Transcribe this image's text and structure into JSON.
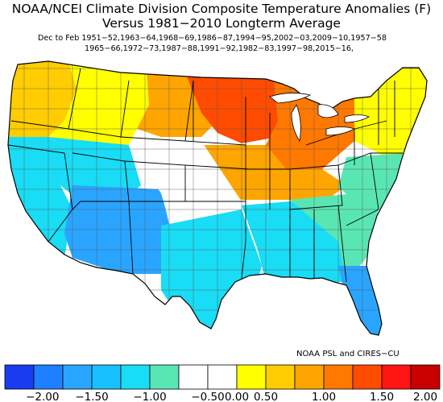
{
  "header": {
    "title_line1": "NOAA/NCEI Climate Division Composite Temperature Anomalies (F)",
    "title_line2": "Versus 1981−2010 Longterm Average",
    "season_years_line1": "Dec to Feb   1951−52,1963−64,1968−69,1986−87,1994−95,2002−03,2009−10,1957−58",
    "season_years_line2": "1965−66,1972−73,1987−88,1991−92,1982−83,1997−98,2015−16,"
  },
  "credit": "NOAA PSL and CIRES−CU",
  "colorbar": {
    "tick_labels": [
      "−2.00",
      "−1.50",
      "−1.00",
      "−0.50",
      "0.00",
      "0.50",
      "1.00",
      "1.50",
      "2.00"
    ],
    "colors": [
      "#1a3cf0",
      "#1e7fff",
      "#2aa5ff",
      "#19c0ff",
      "#19dcf5",
      "#5ae6b4",
      "#ffffff",
      "#ffffff",
      "#ffff00",
      "#ffcd00",
      "#ffa500",
      "#ff7800",
      "#ff4b00",
      "#ff1414",
      "#c80000"
    ]
  },
  "map": {
    "regions": [
      {
        "name": "pacific-northwest",
        "color": "#ffcd00"
      },
      {
        "name": "northern-rockies",
        "color": "#ffff00"
      },
      {
        "name": "northern-plains",
        "color": "#ffa500"
      },
      {
        "name": "upper-midwest",
        "color": "#ff4b00"
      },
      {
        "name": "great-lakes",
        "color": "#ff7800"
      },
      {
        "name": "ohio-valley",
        "color": "#ffa500"
      },
      {
        "name": "new-england",
        "color": "#ffff00"
      },
      {
        "name": "mid-atlantic",
        "color": "#5ae6b4"
      },
      {
        "name": "california",
        "color": "#19dcf5"
      },
      {
        "name": "great-basin",
        "color": "#19dcf5"
      },
      {
        "name": "four-corners",
        "color": "#2aa5ff"
      },
      {
        "name": "central-plains",
        "color": "#ffffff"
      },
      {
        "name": "texas",
        "color": "#19dcf5"
      },
      {
        "name": "deep-south",
        "color": "#19dcf5"
      },
      {
        "name": "southeast",
        "color": "#5ae6b4"
      },
      {
        "name": "florida",
        "color": "#2aa5ff"
      }
    ]
  }
}
